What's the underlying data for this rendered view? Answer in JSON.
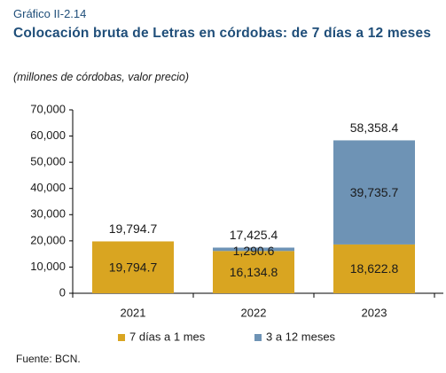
{
  "header": {
    "figure_label": "Gráfico II-2.14",
    "title": "Colocación bruta de Letras en córdobas: de 7 días a 12 meses",
    "subtitle": "(millones de córdobas, valor precio)"
  },
  "footer": {
    "source": "Fuente: BCN."
  },
  "colors": {
    "series_short": "#d9a521",
    "series_long": "#6e93b5"
  },
  "chart_data": {
    "type": "bar",
    "stacked": true,
    "categories": [
      "2021",
      "2022",
      "2023"
    ],
    "series": [
      {
        "name": "7 días a 1 mes",
        "values": [
          19794.7,
          16134.8,
          18622.8
        ],
        "labels": [
          "19,794.7",
          "16,134.8",
          "18,622.8"
        ]
      },
      {
        "name": "3 a 12 meses",
        "values": [
          0,
          1290.6,
          39735.7
        ],
        "labels": [
          "",
          "1,290.6",
          "39,735.7"
        ]
      }
    ],
    "totals": [
      19794.7,
      17425.4,
      58358.4
    ],
    "total_labels": [
      "19,794.7",
      "17,425.4",
      "58,358.4"
    ],
    "ylim": [
      0,
      70000
    ],
    "yticks": [
      0,
      10000,
      20000,
      30000,
      40000,
      50000,
      60000,
      70000
    ],
    "ytick_labels": [
      "0",
      "10,000",
      "20,000",
      "30,000",
      "40,000",
      "50,000",
      "60,000",
      "70,000"
    ],
    "xlabel": "",
    "ylabel": "",
    "grid": false,
    "legend_position": "bottom"
  }
}
